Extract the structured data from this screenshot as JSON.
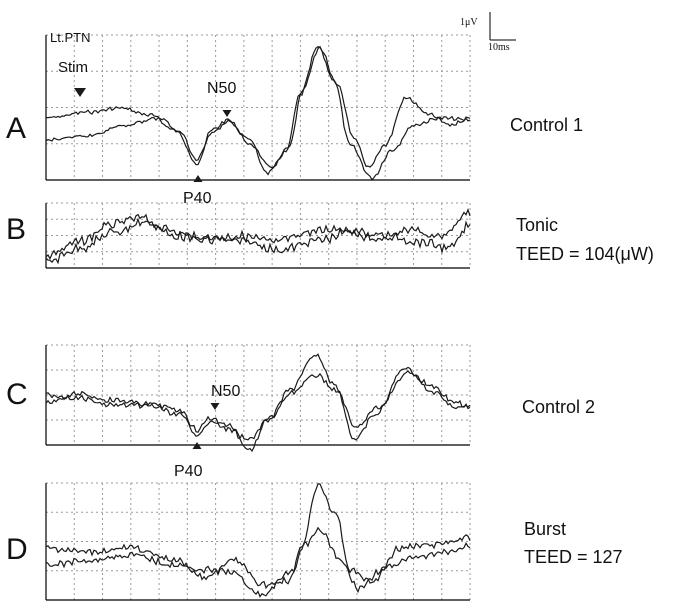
{
  "header": {
    "nerve_label": "Lt.PTN",
    "stim_label": "Stim",
    "scale_amplitude": "1μV",
    "scale_time": "10ms"
  },
  "panels": [
    {
      "letter": "A",
      "condition": "Control 1",
      "teed": "",
      "peak_top": "N50",
      "peak_bottom": "P40"
    },
    {
      "letter": "B",
      "condition": "Tonic",
      "teed": "TEED = 104(μW)",
      "peak_top": "",
      "peak_bottom": ""
    },
    {
      "letter": "C",
      "condition": "Control 2",
      "teed": "",
      "peak_top": "N50",
      "peak_bottom": "P40"
    },
    {
      "letter": "D",
      "condition": "Burst",
      "teed": "TEED = 127",
      "peak_top": "",
      "peak_bottom": ""
    }
  ],
  "colors": {
    "trace": "#1a1a1a",
    "grid": "#9a9a9a",
    "axis": "#000000"
  }
}
